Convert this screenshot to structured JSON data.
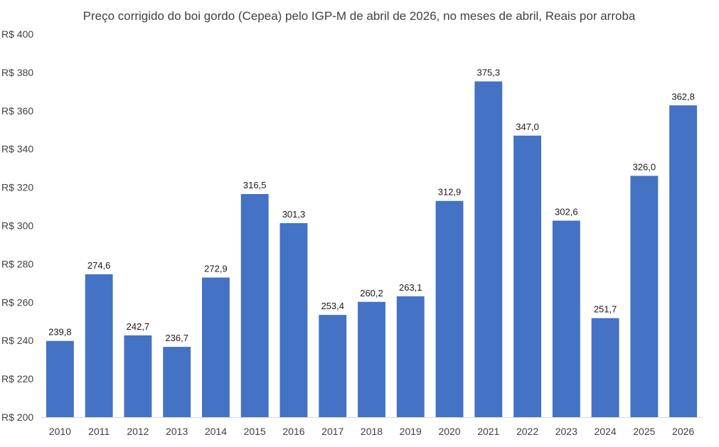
{
  "chart_data": {
    "type": "bar",
    "title": "Preço corrigido do boi gordo (Cepea) pelo IGP-M de abril de 2026, no meses de abril, Reais por arroba",
    "xlabel": "",
    "ylabel": "",
    "categories": [
      "2010",
      "2011",
      "2012",
      "2013",
      "2014",
      "2015",
      "2016",
      "2017",
      "2018",
      "2019",
      "2020",
      "2021",
      "2022",
      "2023",
      "2024",
      "2025",
      "2026"
    ],
    "values": [
      239.8,
      274.6,
      242.7,
      236.7,
      272.9,
      316.5,
      301.3,
      253.4,
      260.2,
      263.1,
      312.9,
      375.3,
      347.0,
      302.6,
      251.7,
      326.0,
      362.8
    ],
    "data_labels": [
      "239,8",
      "274,6",
      "242,7",
      "236,7",
      "272,9",
      "316,5",
      "301,3",
      "253,4",
      "260,2",
      "263,1",
      "312,9",
      "375,3",
      "347,0",
      "302,6",
      "251,7",
      "326,0",
      "362,8"
    ],
    "ylim": [
      200,
      400
    ],
    "yticks": [
      200,
      220,
      240,
      260,
      280,
      300,
      320,
      340,
      360,
      380,
      400
    ],
    "ytick_labels": [
      "R$ 200",
      "R$ 220",
      "R$ 240",
      "R$ 260",
      "R$ 280",
      "R$ 300",
      "R$ 320",
      "R$ 340",
      "R$ 360",
      "R$ 380",
      "R$ 400"
    ],
    "grid": false,
    "legend": "none",
    "bar_color": "#4472C4",
    "axis_color": "#d9d9d9"
  }
}
